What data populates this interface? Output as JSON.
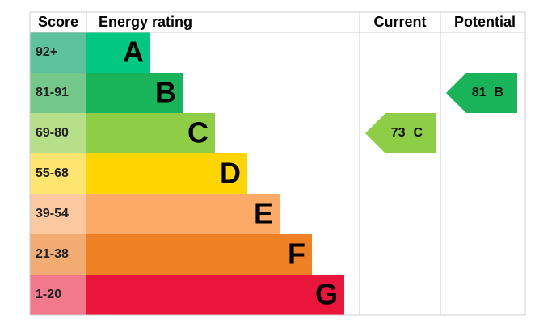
{
  "chart_data": {
    "type": "epc",
    "headers": {
      "score": "Score",
      "rating": "Energy rating",
      "current": "Current",
      "potential": "Potential"
    },
    "bands": [
      {
        "score": "92+",
        "letter": "A",
        "color": "#00c781",
        "score_color": "#5fc29e"
      },
      {
        "score": "81-91",
        "letter": "B",
        "color": "#19b459",
        "score_color": "#74c98a"
      },
      {
        "score": "69-80",
        "letter": "C",
        "color": "#8dce46",
        "score_color": "#b6df8a"
      },
      {
        "score": "55-68",
        "letter": "D",
        "color": "#ffd500",
        "score_color": "#fde56f"
      },
      {
        "score": "39-54",
        "letter": "E",
        "color": "#fcaa65",
        "score_color": "#fcc9a0"
      },
      {
        "score": "21-38",
        "letter": "F",
        "color": "#ef8023",
        "score_color": "#f2ab70"
      },
      {
        "score": "1-20",
        "letter": "G",
        "color": "#e9153b",
        "score_color": "#f07a8c"
      }
    ],
    "current": {
      "value": 73,
      "letter": "C"
    },
    "potential": {
      "value": 81,
      "letter": "B"
    }
  }
}
